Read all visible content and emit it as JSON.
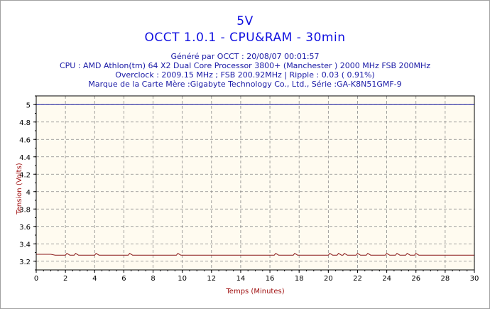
{
  "chart_data": {
    "type": "line",
    "title": "5V",
    "subtitle": "OCCT 1.0.1 - CPU&RAM -  30min",
    "info_lines": [
      "Généré par OCCT : 20/08/07 00:01:57",
      "CPU : AMD Athlon(tm) 64 X2 Dual Core Processor 3800+ (Manchester ) 2000 MHz FSB 200MHz",
      "Overclock : 2009.15 MHz ; FSB 200.92MHz | Ripple : 0.03 ( 0.91%)",
      "Marque de la Carte Mère :Gigabyte Technology Co., Ltd., Série :GA-K8N51GMF-9"
    ],
    "xlabel": "Temps (Minutes)",
    "ylabel": "Tension (Volts)",
    "xlim": [
      0,
      30
    ],
    "ylim": [
      3.1,
      5.1
    ],
    "xticks": [
      0,
      2,
      4,
      6,
      8,
      10,
      12,
      14,
      16,
      18,
      20,
      22,
      24,
      26,
      28,
      30
    ],
    "yticks": [
      3.2,
      3.4,
      3.6,
      3.8,
      4,
      4.2,
      4.4,
      4.6,
      4.8,
      5
    ],
    "grid": true,
    "series": [
      {
        "color": "#1a1aa0",
        "x": [
          0,
          30
        ],
        "y": [
          5.0,
          5.0
        ]
      },
      {
        "color": "#8b1a1a",
        "x": [
          0,
          1.0,
          1.3,
          1.6,
          2.0,
          2.1,
          2.3,
          2.6,
          2.7,
          2.9,
          4.0,
          4.1,
          4.3,
          6.3,
          6.4,
          6.6,
          9.6,
          9.7,
          9.9,
          16.3,
          16.4,
          16.6,
          17.6,
          17.7,
          17.9,
          20.0,
          20.1,
          20.3,
          20.6,
          20.7,
          20.9,
          21.0,
          21.1,
          21.3,
          21.9,
          22.0,
          22.2,
          22.6,
          22.7,
          22.9,
          23.9,
          24.0,
          24.2,
          24.6,
          24.7,
          24.9,
          25.3,
          25.4,
          25.6,
          25.9,
          26.0,
          26.2,
          30
        ],
        "y": [
          3.28,
          3.28,
          3.27,
          3.27,
          3.27,
          3.29,
          3.27,
          3.27,
          3.29,
          3.27,
          3.27,
          3.29,
          3.27,
          3.27,
          3.29,
          3.27,
          3.27,
          3.29,
          3.27,
          3.27,
          3.29,
          3.27,
          3.27,
          3.29,
          3.27,
          3.27,
          3.29,
          3.27,
          3.27,
          3.29,
          3.27,
          3.27,
          3.29,
          3.27,
          3.27,
          3.29,
          3.27,
          3.27,
          3.29,
          3.27,
          3.27,
          3.29,
          3.27,
          3.27,
          3.29,
          3.27,
          3.27,
          3.29,
          3.27,
          3.27,
          3.29,
          3.27,
          3.27
        ]
      }
    ]
  }
}
